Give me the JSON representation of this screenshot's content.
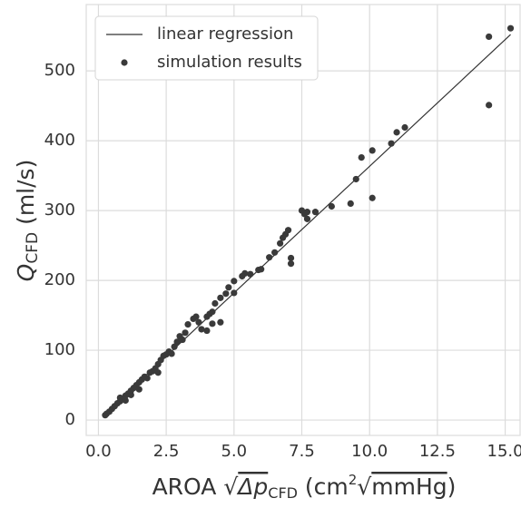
{
  "chart_data": {
    "type": "scatter",
    "xlabel_parts": [
      "AROA ",
      "√",
      "Δp",
      "CFD",
      " (cm",
      "2",
      "√",
      "mmHg",
      ")"
    ],
    "ylabel_parts": [
      "Q",
      "CFD",
      " (ml/s)"
    ],
    "xlim": [
      -0.45,
      15.55
    ],
    "ylim": [
      -22,
      595
    ],
    "xticks": [
      {
        "value": 0,
        "label": "0.0"
      },
      2.5,
      {
        "value": 5,
        "label": "5.0"
      },
      7.5,
      {
        "value": 10,
        "label": "10.0"
      },
      12.5,
      {
        "value": 15,
        "label": "15.0"
      }
    ],
    "yticks": [
      0,
      100,
      200,
      300,
      400,
      500
    ],
    "grid": true,
    "legend": "upper left",
    "series": [
      {
        "name": "linear regression",
        "type": "line",
        "color": "#333333",
        "x": [
          0.2,
          15.2
        ],
        "values": [
          8,
          552
        ]
      },
      {
        "name": "simulation results",
        "type": "scatter",
        "color": "#3a3a3a",
        "x": [
          14.4,
          15.2,
          14.4,
          10.1,
          10.1,
          9.7,
          9.5,
          9.3,
          10.8,
          11.0,
          11.3,
          8.6,
          7.7,
          7.6,
          7.7,
          7.5,
          8.0,
          7.0,
          6.9,
          7.1,
          7.1,
          6.8,
          6.7,
          6.5,
          6.3,
          6.0,
          5.9,
          5.6,
          5.4,
          5.3,
          5.0,
          4.8,
          4.7,
          4.5,
          5.0,
          4.3,
          4.2,
          4.1,
          4.0,
          4.5,
          4.2,
          4.0,
          3.7,
          3.6,
          3.5,
          3.3,
          3.2,
          3.0,
          2.9,
          2.8,
          2.6,
          2.5,
          2.4,
          2.3,
          2.2,
          2.1,
          2.0,
          1.9,
          1.7,
          1.6,
          1.5,
          1.4,
          1.3,
          1.2,
          1.1,
          1.0,
          0.9,
          0.8,
          0.7,
          0.6,
          0.5,
          0.4,
          0.3,
          0.25,
          3.8,
          2.2,
          1.8,
          1.5,
          1.2,
          2.7,
          3.1,
          1.0,
          0.8
        ],
        "values": [
          549,
          561,
          451,
          386,
          318,
          376,
          345,
          310,
          396,
          412,
          419,
          306,
          298,
          295,
          288,
          300,
          298,
          272,
          266,
          232,
          224,
          261,
          253,
          240,
          233,
          216,
          215,
          209,
          210,
          206,
          199,
          190,
          181,
          175,
          182,
          167,
          155,
          152,
          148,
          140,
          138,
          128,
          140,
          148,
          145,
          137,
          125,
          120,
          112,
          105,
          98,
          94,
          92,
          86,
          80,
          74,
          70,
          68,
          62,
          58,
          54,
          50,
          46,
          42,
          38,
          35,
          30,
          27,
          24,
          20,
          16,
          12,
          9,
          7,
          130,
          68,
          60,
          44,
          36,
          95,
          115,
          28,
          32
        ]
      }
    ]
  }
}
